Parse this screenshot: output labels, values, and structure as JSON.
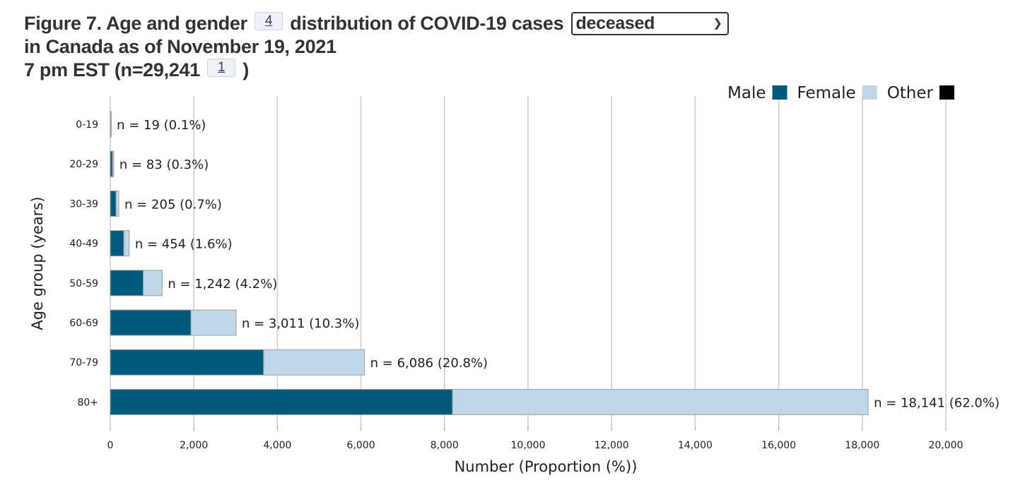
{
  "header": {
    "title_part1": "Figure 7. Age and gender",
    "footnote1": "4",
    "title_part2": "distribution of COVID-19 cases",
    "case_type_selected": "deceased",
    "title_part3": "in Canada as of November 19, 2021",
    "title_line2": "7 pm EST (n=29,241",
    "footnote2": "1",
    "title_close": ")"
  },
  "icons": {
    "select_arrow": "chevron-down-icon"
  },
  "chart_data": {
    "type": "bar",
    "orientation": "horizontal",
    "stacked": true,
    "categories": [
      "0-19",
      "20-29",
      "30-39",
      "40-49",
      "50-59",
      "60-69",
      "70-79",
      "80+"
    ],
    "series": [
      {
        "name": "Male",
        "color": "#005a7c",
        "values": [
          9,
          55,
          140,
          325,
          790,
          1930,
          3670,
          8190
        ]
      },
      {
        "name": "Female",
        "color": "#bfd7e6",
        "values": [
          10,
          28,
          65,
          129,
          452,
          1081,
          2416,
          9951
        ]
      },
      {
        "name": "Other",
        "color": "#000000",
        "values": [
          0,
          0,
          0,
          0,
          0,
          0,
          0,
          0
        ]
      }
    ],
    "bar_labels": [
      "n = 19 (0.1%)",
      "n = 83 (0.3%)",
      "n = 205 (0.7%)",
      "n = 454 (1.6%)",
      "n = 1,242 (4.2%)",
      "n = 3,011 (10.3%)",
      "n = 6,086 (20.8%)",
      "n = 18,141 (62.0%)"
    ],
    "totals": [
      19,
      83,
      205,
      454,
      1242,
      3011,
      6086,
      18141
    ],
    "xlabel": "Number (Proportion (%))",
    "ylabel": "Age group (years)",
    "xlim": [
      0,
      20000
    ],
    "xticks": [
      0,
      2000,
      4000,
      6000,
      8000,
      10000,
      12000,
      14000,
      16000,
      18000,
      20000
    ],
    "xtick_labels": [
      "0",
      "2,000",
      "4,000",
      "6,000",
      "8,000",
      "10,000",
      "12,000",
      "14,000",
      "16,000",
      "18,000",
      "20,000"
    ],
    "grid": "vertical",
    "legend_position": "top-right",
    "bar_outline_color": "#a0a0a0",
    "grid_color": "#cccccc"
  }
}
